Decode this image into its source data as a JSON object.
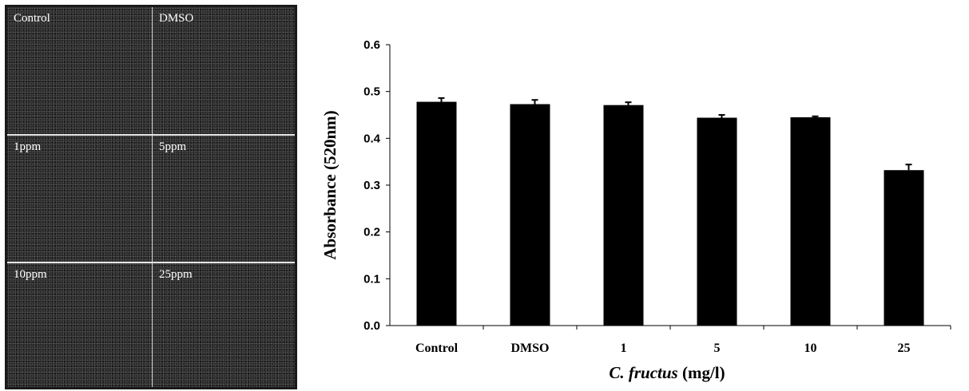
{
  "panel": {
    "labels": [
      "Control",
      "DMSO",
      "1ppm",
      "5ppm",
      "10ppm",
      "25ppm"
    ]
  },
  "chart_data": {
    "type": "bar",
    "categories": [
      "Control",
      "DMSO",
      "1",
      "5",
      "10",
      "25"
    ],
    "values": [
      0.478,
      0.473,
      0.471,
      0.444,
      0.445,
      0.332
    ],
    "errors": [
      0.008,
      0.009,
      0.006,
      0.006,
      0.002,
      0.012
    ],
    "ylabel": "Absorbance (520nm)",
    "xlabel_italic": "C. fructus",
    "xlabel_rest": " (mg/l)",
    "ylim": [
      0,
      0.6
    ],
    "yticks": [
      "0.0",
      "0.1",
      "0.2",
      "0.3",
      "0.4",
      "0.5",
      "0.6"
    ],
    "bar_color": "#000000",
    "grid": false,
    "legend": "none"
  }
}
